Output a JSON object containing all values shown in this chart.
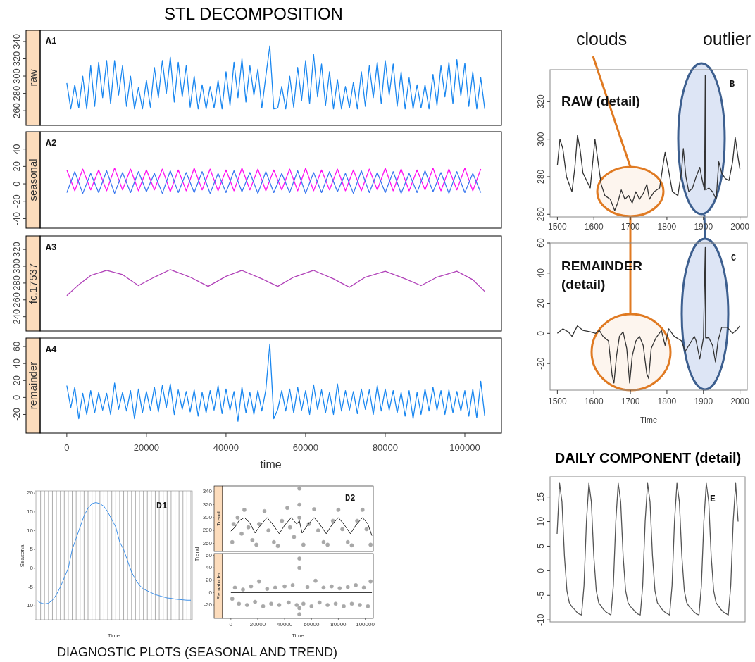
{
  "chart_data": [
    {
      "type": "line",
      "title": "STL DECOMPOSITION",
      "ylabel": "raw",
      "annotations": [
        "A1"
      ],
      "tick_labels": "y",
      "xlim": [
        -6700,
        109200
      ],
      "ylim": [
        243,
        353
      ],
      "yticks": [
        260,
        280,
        300,
        320,
        340
      ],
      "x": [
        0,
        1000,
        2000,
        3000,
        4000,
        5000,
        6000,
        7000,
        8000,
        9000,
        10000,
        11000,
        12000,
        13000,
        14000,
        15000,
        16000,
        17000,
        18000,
        19000,
        20000,
        21000,
        22000,
        23000,
        24000,
        25000,
        26000,
        27000,
        28000,
        29000,
        30000,
        31000,
        32000,
        33000,
        34000,
        35000,
        36000,
        37000,
        38000,
        39000,
        40000,
        41000,
        42000,
        43000,
        44000,
        45000,
        46000,
        47000,
        48000,
        49000,
        50000,
        51000,
        52000,
        53000,
        54000,
        55000,
        56000,
        57000,
        58000,
        59000,
        60000,
        61000,
        62000,
        63000,
        64000,
        65000,
        66000,
        67000,
        68000,
        69000,
        70000,
        71000,
        72000,
        73000,
        74000,
        75000,
        76000,
        77000,
        78000,
        79000,
        80000,
        81000,
        82000,
        83000,
        84000,
        85000,
        86000,
        87000,
        88000,
        89000,
        90000,
        91000,
        92000,
        93000,
        94000,
        95000,
        96000,
        97000,
        98000,
        99000,
        100000,
        101000,
        102000,
        103000,
        104000,
        105000
      ],
      "series": [
        {
          "color": "#1a87f0",
          "values": [
            292,
            262,
            290,
            263,
            300,
            262,
            312,
            265,
            316,
            275,
            318,
            268,
            318,
            278,
            312,
            265,
            300,
            262,
            287,
            262,
            295,
            264,
            310,
            275,
            318,
            280,
            322,
            270,
            316,
            276,
            312,
            264,
            300,
            262,
            290,
            262,
            288,
            263,
            295,
            262,
            305,
            266,
            316,
            275,
            320,
            270,
            312,
            278,
            308,
            263,
            300,
            335,
            262,
            263,
            288,
            262,
            300,
            264,
            310,
            272,
            318,
            268,
            325,
            276,
            314,
            266,
            305,
            262,
            296,
            262,
            288,
            263,
            293,
            262,
            305,
            265,
            312,
            275,
            316,
            268,
            318,
            278,
            314,
            265,
            305,
            262,
            298,
            262,
            290,
            263,
            290,
            262,
            302,
            266,
            312,
            276,
            316,
            268,
            319,
            277,
            315,
            265,
            305,
            262,
            298,
            262
          ]
        }
      ]
    },
    {
      "type": "line",
      "ylabel": "seasonal",
      "annotations": [
        "A2"
      ],
      "tick_labels": "y",
      "xlim": [
        -6700,
        109200
      ],
      "ylim": [
        -51,
        60
      ],
      "yticks": [
        -40,
        -20,
        0,
        20,
        40
      ],
      "x": [
        0,
        2000,
        4000,
        6000,
        8000,
        10000,
        12000,
        14000,
        16000,
        18000,
        20000,
        22000,
        24000,
        26000,
        28000,
        30000,
        32000,
        34000,
        36000,
        38000,
        40000,
        42000,
        44000,
        46000,
        48000,
        50000,
        52000,
        54000,
        56000,
        58000,
        60000,
        62000,
        64000,
        66000,
        68000,
        70000,
        72000,
        74000,
        76000,
        78000,
        80000,
        82000,
        84000,
        86000,
        88000,
        90000,
        92000,
        94000,
        96000,
        98000,
        100000,
        102000,
        104000
      ],
      "series": [
        {
          "color": "#ff10f0",
          "values": [
            16,
            -8,
            17,
            -7,
            16,
            -8,
            18,
            -7,
            17,
            -8,
            16,
            -7,
            17,
            -9,
            16,
            -8,
            18,
            -7,
            17,
            -8,
            16,
            -8,
            18,
            -7,
            17,
            -8,
            16,
            -7,
            17,
            -8,
            18,
            -8,
            16,
            -7,
            17,
            -8,
            16,
            -8,
            17,
            -7,
            18,
            -8,
            17,
            -8,
            16,
            -7,
            18,
            -8,
            17,
            -7,
            18,
            -8,
            17
          ]
        },
        {
          "color": "#3a78f0",
          "values": [
            -10,
            14,
            -11,
            12,
            -10,
            15,
            -11,
            13,
            -10,
            14,
            -9,
            12,
            -11,
            15,
            -10,
            13,
            -10,
            14,
            -11,
            12,
            -10,
            15,
            -9,
            13,
            -11,
            14,
            -10,
            12,
            -10,
            15,
            -11,
            13,
            -10,
            14,
            -9,
            12,
            -11,
            15,
            -10,
            13,
            -10,
            14,
            -11,
            12,
            -10,
            15,
            -9,
            13,
            -11,
            14,
            -10,
            12,
            -10
          ]
        }
      ]
    },
    {
      "type": "line",
      "ylabel": "fc.17537",
      "annotations": [
        "A3"
      ],
      "tick_labels": "y",
      "xlim": [
        -6700,
        109200
      ],
      "ylim": [
        223,
        336
      ],
      "yticks": [
        240,
        260,
        280,
        300,
        320
      ],
      "x": [
        0,
        3000,
        6000,
        10000,
        14000,
        18000,
        22000,
        26000,
        31000,
        35500,
        40000,
        44000,
        49000,
        53000,
        57000,
        62000,
        67000,
        71000,
        75000,
        80000,
        85000,
        89000,
        93000,
        98000,
        102000,
        105000
      ],
      "series": [
        {
          "color": "#b040b8",
          "values": [
            265,
            278,
            289,
            295,
            290,
            277,
            287,
            296,
            287,
            276,
            288,
            295,
            285,
            276,
            287,
            295,
            285,
            275,
            287,
            294,
            285,
            277,
            287,
            294,
            284,
            270
          ]
        }
      ]
    },
    {
      "type": "line",
      "ylabel": "remainder",
      "xlabel": "time",
      "annotations": [
        "A4"
      ],
      "xlim": [
        -6700,
        109200
      ],
      "ylim": [
        -42,
        70
      ],
      "yticks": [
        -20,
        0,
        20,
        40,
        60
      ],
      "xticks": [
        0,
        20000,
        40000,
        60000,
        80000,
        100000
      ],
      "x": [
        0,
        1000,
        2000,
        3000,
        4000,
        5000,
        6000,
        7000,
        8000,
        9000,
        10000,
        11000,
        12000,
        13000,
        14000,
        15000,
        16000,
        17000,
        18000,
        19000,
        20000,
        21000,
        22000,
        23000,
        24000,
        25000,
        26000,
        27000,
        28000,
        29000,
        30000,
        31000,
        32000,
        33000,
        34000,
        35000,
        36000,
        37000,
        38000,
        39000,
        40000,
        41000,
        42000,
        43000,
        44000,
        45000,
        46000,
        47000,
        48000,
        49000,
        50000,
        51000,
        52000,
        53000,
        54000,
        55000,
        56000,
        57000,
        58000,
        59000,
        60000,
        61000,
        62000,
        63000,
        64000,
        65000,
        66000,
        67000,
        68000,
        69000,
        70000,
        71000,
        72000,
        73000,
        74000,
        75000,
        76000,
        77000,
        78000,
        79000,
        80000,
        81000,
        82000,
        83000,
        84000,
        85000,
        86000,
        87000,
        88000,
        89000,
        90000,
        91000,
        92000,
        93000,
        94000,
        95000,
        96000,
        97000,
        98000,
        99000,
        100000,
        101000,
        102000,
        103000,
        104000,
        105000
      ],
      "series": [
        {
          "color": "#1a87f0",
          "values": [
            14,
            -12,
            12,
            -25,
            5,
            -20,
            8,
            -18,
            6,
            -15,
            5,
            -20,
            17,
            -14,
            6,
            -16,
            8,
            -25,
            10,
            -18,
            7,
            -15,
            12,
            -17,
            14,
            -12,
            16,
            -20,
            9,
            -14,
            7,
            -17,
            9,
            -22,
            6,
            -18,
            8,
            -15,
            14,
            -19,
            10,
            -15,
            7,
            -28,
            12,
            -18,
            6,
            -20,
            8,
            -16,
            9,
            63,
            -25,
            -14,
            8,
            -16,
            10,
            -18,
            12,
            -15,
            8,
            -20,
            15,
            -14,
            9,
            -18,
            6,
            -20,
            16,
            -16,
            8,
            -15,
            7,
            -19,
            10,
            -14,
            9,
            -20,
            14,
            -16,
            10,
            -15,
            8,
            -18,
            6,
            -22,
            8,
            -25,
            6,
            -20,
            10,
            -16,
            12,
            -15,
            8,
            -20,
            9,
            -18,
            7,
            -16,
            8,
            -22,
            10,
            -24,
            19,
            -22
          ]
        }
      ]
    },
    {
      "type": "line",
      "annotations": [
        "RAW (detail)",
        "B",
        "clouds",
        "outlier"
      ],
      "xlim": [
        1480,
        2020
      ],
      "ylim": [
        258.6,
        337
      ],
      "xticks": [
        1500,
        1600,
        1700,
        1800,
        1900,
        2000
      ],
      "yticks": [
        260,
        280,
        300,
        320
      ],
      "x": [
        1500,
        1507,
        1515,
        1525,
        1540,
        1548,
        1555,
        1562,
        1570,
        1590,
        1598,
        1603,
        1610,
        1620,
        1630,
        1645,
        1657,
        1665,
        1675,
        1685,
        1695,
        1705,
        1715,
        1725,
        1735,
        1745,
        1752,
        1765,
        1780,
        1790,
        1795,
        1805,
        1815,
        1830,
        1840,
        1845,
        1852,
        1860,
        1870,
        1880,
        1890,
        1897,
        1903,
        1905,
        1906,
        1915,
        1925,
        1935,
        1942,
        1950,
        1960,
        1970,
        1980,
        1987,
        1995,
        2000
      ],
      "series": [
        {
          "color": "#333333",
          "values": [
            286,
            300,
            295,
            280,
            272,
            285,
            302,
            295,
            282,
            274,
            290,
            300,
            290,
            276,
            270,
            268,
            262,
            266,
            273,
            268,
            270,
            266,
            272,
            268,
            271,
            276,
            268,
            272,
            274,
            287,
            293,
            283,
            272,
            270,
            283,
            295,
            280,
            272,
            274,
            280,
            285,
            278,
            273,
            334,
            273,
            274,
            272,
            268,
            288,
            282,
            279,
            278,
            288,
            301,
            290,
            284
          ]
        }
      ]
    },
    {
      "type": "line",
      "xlabel": "Time",
      "annotations": [
        "REMAINDER (detail)",
        "C"
      ],
      "xlim": [
        1480,
        2020
      ],
      "ylim": [
        -37.7,
        60
      ],
      "xticks": [
        1500,
        1600,
        1700,
        1800,
        1900,
        2000
      ],
      "yticks": [
        -20,
        0,
        20,
        40,
        60
      ],
      "x": [
        1500,
        1515,
        1530,
        1540,
        1555,
        1570,
        1590,
        1605,
        1615,
        1625,
        1640,
        1650,
        1655,
        1662,
        1670,
        1680,
        1690,
        1698,
        1705,
        1715,
        1725,
        1735,
        1745,
        1750,
        1757,
        1770,
        1785,
        1795,
        1805,
        1820,
        1840,
        1850,
        1860,
        1875,
        1880,
        1890,
        1900,
        1905,
        1906,
        1915,
        1925,
        1933,
        1940,
        1950,
        1965,
        1980,
        1990,
        2000
      ],
      "series": [
        {
          "color": "#333333",
          "values": [
            0,
            3,
            1,
            -2,
            5,
            2,
            1,
            0,
            2,
            -2,
            -5,
            -28,
            -33,
            -15,
            -2,
            1,
            -10,
            -33,
            -15,
            -5,
            -2,
            -8,
            -27,
            -30,
            -10,
            -3,
            2,
            -8,
            3,
            -2,
            -5,
            -12,
            -8,
            -2,
            -5,
            -17,
            -3,
            57,
            -3,
            -3,
            -8,
            -19,
            -5,
            4,
            4,
            0,
            2,
            5
          ]
        }
      ]
    },
    {
      "type": "line",
      "title": "DAILY COMPONENT (detail)",
      "annotations": [
        "E"
      ],
      "tick_labels": "y",
      "ylim": [
        -10.4,
        19.1
      ],
      "yticks": [
        -10,
        -5,
        0,
        5,
        10,
        15
      ],
      "categories": [
        null,
        null,
        null,
        null,
        null,
        null,
        null,
        null,
        null,
        null,
        null,
        null,
        null,
        null,
        null,
        null,
        null,
        null,
        null,
        null,
        null,
        null,
        null,
        null,
        null,
        null,
        null,
        null,
        null,
        null,
        null,
        null,
        null,
        null,
        null,
        null,
        null,
        null,
        null,
        null,
        null,
        null,
        null,
        null,
        null,
        null,
        null,
        null,
        null,
        null,
        null,
        null,
        null,
        null,
        null,
        null,
        null,
        null,
        null,
        null,
        null,
        null,
        null,
        null,
        null,
        null,
        null,
        null,
        null,
        null,
        null,
        null,
        null,
        null,
        null
      ],
      "series": [
        {
          "color": "#555555",
          "values": [
            7.5,
            17.8,
            14,
            3,
            -4,
            -6.5,
            -7.3,
            -7.8,
            -8.4,
            -8.8,
            -9,
            -3,
            10,
            17.8,
            14,
            3,
            -4,
            -6.5,
            -7.2,
            -7.9,
            -8.4,
            -8.7,
            -9,
            -3,
            10,
            17.8,
            14,
            3,
            -4,
            -6.5,
            -7.3,
            -7.8,
            -8.4,
            -8.8,
            -9,
            -3,
            10,
            17.8,
            14,
            3,
            -4,
            -6.5,
            -7.2,
            -7.9,
            -8.4,
            -8.7,
            -9,
            -3,
            10,
            17.8,
            14,
            3,
            -4,
            -6.5,
            -7.3,
            -7.8,
            -8.4,
            -8.8,
            -9,
            -3,
            10,
            17.8,
            14,
            3,
            -4,
            -6.5,
            -7.2,
            -7.9,
            -8.4,
            -8.7,
            -9,
            -3,
            10,
            17.8,
            10
          ]
        }
      ]
    },
    {
      "type": "line",
      "xlabel": "Time",
      "ylabel": "Seasonal",
      "annotations": [
        "D1",
        "DIAGNOSTIC PLOTS (SEASONAL AND TREND)"
      ],
      "tick_labels": "y",
      "grid": "x",
      "ylim": [
        -13.7,
        20.6
      ],
      "yticks": [
        -10,
        -5,
        0,
        5,
        10,
        15,
        20
      ],
      "categories": [
        null,
        null,
        null,
        null,
        null,
        null,
        null,
        null,
        null,
        null,
        null,
        null,
        null,
        null,
        null,
        null,
        null,
        null,
        null,
        null,
        null,
        null,
        null,
        null,
        null,
        null,
        null,
        null,
        null,
        null,
        null,
        null,
        null,
        null,
        null,
        null,
        null,
        null,
        null,
        null
      ],
      "series": [
        {
          "color": "#2a86e8",
          "values": [
            -8.5,
            -9.2,
            -9.5,
            -9.3,
            -8.5,
            -7,
            -5,
            -2.5,
            0,
            5,
            8,
            11,
            14,
            16,
            17.2,
            17.5,
            17.2,
            16.5,
            15,
            13,
            11,
            7,
            5,
            2,
            -1,
            -3,
            -4.5,
            -5.5,
            -6,
            -6.5,
            -7,
            -7.3,
            -7.6,
            -7.9,
            -8,
            -8.2,
            -8.3,
            -8.4,
            -8.5,
            -8.5
          ]
        }
      ]
    },
    {
      "type": "line",
      "ylabel": "Trend",
      "annotations": [
        "D2",
        "Trend"
      ],
      "tick_labels": "y",
      "xlim": [
        -6200,
        106000
      ],
      "ylim": [
        247.5,
        349
      ],
      "yticks": [
        260,
        280,
        300,
        320,
        340
      ],
      "x": [
        0,
        3000,
        6000,
        10000,
        14000,
        18000,
        22000,
        27000,
        31000,
        36000,
        40000,
        45000,
        49000,
        51000,
        53000,
        57000,
        62000,
        66000,
        71000,
        75000,
        80000,
        84000,
        89000,
        93000,
        98000,
        102000,
        105000
      ],
      "series": [
        {
          "type": "scatter",
          "marker": "circle",
          "color": "#a8a8a8",
          "x": [
            1000,
            2000,
            5000,
            8000,
            10000,
            13000,
            16000,
            19000,
            21000,
            25000,
            28000,
            32000,
            35000,
            38000,
            42000,
            44000,
            47000,
            51000,
            51000,
            51000,
            54000,
            58000,
            62000,
            65000,
            69000,
            72000,
            76000,
            80000,
            83000,
            87000,
            90000,
            94000,
            98000,
            101000,
            104000
          ],
          "values": [
            262,
            290,
            300,
            275,
            312,
            285,
            265,
            258,
            290,
            310,
            280,
            262,
            256,
            295,
            315,
            285,
            270,
            345,
            320,
            300,
            258,
            290,
            313,
            280,
            262,
            258,
            295,
            312,
            282,
            262,
            257,
            295,
            312,
            282,
            258
          ]
        },
        {
          "color": "#111111",
          "values": [
            279,
            285,
            295,
            300,
            292,
            276,
            288,
            300,
            290,
            275,
            288,
            300,
            290,
            295,
            276,
            288,
            300,
            290,
            275,
            288,
            300,
            290,
            275,
            288,
            300,
            290,
            272
          ]
        }
      ]
    },
    {
      "type": "line",
      "xlabel": "Time",
      "ylabel": "Remainder",
      "xlim": [
        -6200,
        106000
      ],
      "ylim": [
        -41.6,
        63
      ],
      "xticks": [
        0,
        20000,
        40000,
        60000,
        80000,
        100000
      ],
      "yticks": [
        -20,
        0,
        20,
        40,
        60
      ],
      "x": [
        0,
        105000
      ],
      "series": [
        {
          "type": "scatter",
          "marker": "circle",
          "color": "#a8a8a8",
          "x": [
            1000,
            3000,
            6000,
            9000,
            12000,
            15000,
            18000,
            21000,
            24000,
            27000,
            30000,
            33000,
            36000,
            40000,
            43000,
            46000,
            49000,
            51000,
            51000,
            51000,
            51000,
            54000,
            57000,
            60000,
            63000,
            66000,
            69000,
            72000,
            75000,
            78000,
            81000,
            84000,
            87000,
            90000,
            93000,
            96000,
            99000,
            102000,
            104000
          ],
          "values": [
            -10,
            8,
            -18,
            5,
            -20,
            10,
            -15,
            18,
            -22,
            6,
            -18,
            8,
            -20,
            10,
            -16,
            12,
            -20,
            55,
            40,
            -25,
            -35,
            -18,
            9,
            -22,
            19,
            -16,
            8,
            -20,
            10,
            -18,
            7,
            -22,
            9,
            -18,
            12,
            -20,
            8,
            -22,
            18
          ]
        },
        {
          "color": "#111111",
          "values": [
            0,
            0
          ]
        }
      ]
    }
  ]
}
